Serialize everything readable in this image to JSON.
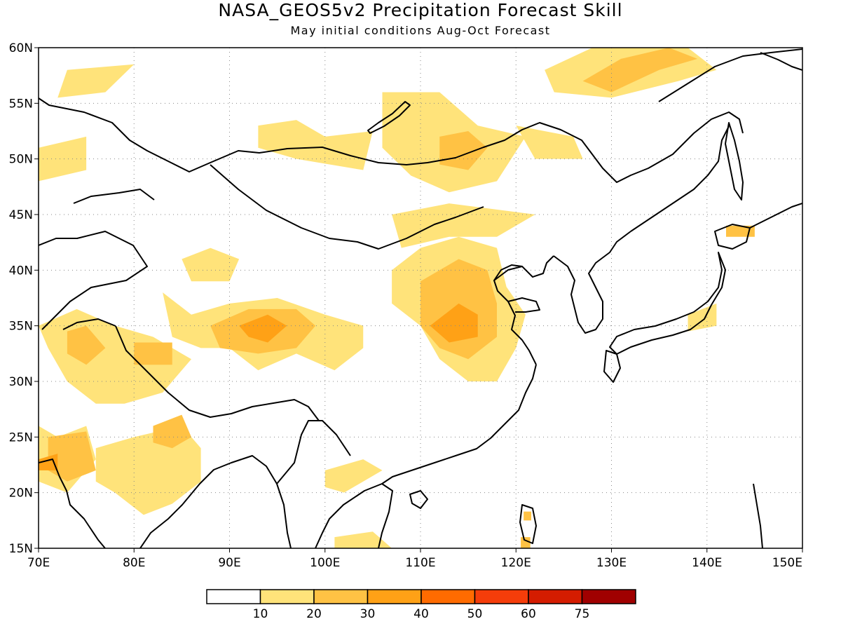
{
  "title": "NASA_GEOS5v2 Precipitation Forecast Skill",
  "subtitle": "May initial conditions  Aug-Oct Forecast",
  "axes": {
    "x_ticks": [
      "70E",
      "80E",
      "90E",
      "100E",
      "110E",
      "120E",
      "130E",
      "140E",
      "150E"
    ],
    "y_ticks": [
      "15N",
      "20N",
      "25N",
      "30N",
      "35N",
      "40N",
      "45N",
      "50N",
      "55N",
      "60N"
    ],
    "lon_range": [
      70,
      150
    ],
    "lat_range": [
      15,
      60
    ],
    "grid": true
  },
  "colorbar": {
    "labels": [
      "10",
      "20",
      "30",
      "40",
      "50",
      "60",
      "75"
    ],
    "colors": [
      "#ffffff",
      "#ffe37a",
      "#ffc244",
      "#ffa116",
      "#ff6b00",
      "#f53d0a",
      "#d41c00",
      "#a00000"
    ]
  },
  "chart_data": {
    "type": "heatmap",
    "title": "NASA_GEOS5v2 Precipitation Forecast Skill",
    "subtitle": "May initial conditions  Aug-Oct Forecast",
    "xlabel": "",
    "ylabel": "",
    "xlim": [
      70,
      150
    ],
    "ylim": [
      15,
      60
    ],
    "levels": [
      10,
      20,
      30,
      40,
      50,
      60,
      75
    ],
    "skill_regions": [
      {
        "name_hint": "",
        "level": 10,
        "lon": [
          [
            73,
            58
          ],
          [
            80,
            58.5
          ],
          [
            77,
            56
          ],
          [
            72,
            55.5
          ]
        ]
      },
      {
        "level": 10,
        "lon": [
          [
            70,
            51
          ],
          [
            75,
            52
          ],
          [
            75,
            49
          ],
          [
            70,
            48
          ]
        ]
      },
      {
        "level": 10,
        "lon": [
          [
            93,
            53
          ],
          [
            97,
            53.5
          ],
          [
            100,
            52
          ],
          [
            105,
            52.5
          ],
          [
            104,
            49
          ],
          [
            97,
            50
          ],
          [
            93,
            51
          ]
        ]
      },
      {
        "level": 10,
        "lon": [
          [
            106,
            56
          ],
          [
            112,
            56
          ],
          [
            116,
            53
          ],
          [
            121,
            52
          ],
          [
            118,
            48
          ],
          [
            113,
            47
          ],
          [
            109,
            48.5
          ],
          [
            106,
            51
          ]
        ]
      },
      {
        "level": 20,
        "lon": [
          [
            112,
            52
          ],
          [
            115,
            52.5
          ],
          [
            117,
            51
          ],
          [
            115,
            49
          ],
          [
            112,
            49.5
          ]
        ]
      },
      {
        "level": 10,
        "lon": [
          [
            120,
            53
          ],
          [
            126,
            52
          ],
          [
            127,
            50
          ],
          [
            122,
            50
          ]
        ]
      },
      {
        "level": 10,
        "lon": [
          [
            123,
            58
          ],
          [
            128,
            60
          ],
          [
            138,
            60
          ],
          [
            141,
            58
          ],
          [
            137,
            57
          ],
          [
            130,
            55.5
          ],
          [
            124,
            56
          ]
        ]
      },
      {
        "level": 20,
        "lon": [
          [
            127,
            57
          ],
          [
            131,
            59
          ],
          [
            136,
            60
          ],
          [
            139,
            59
          ],
          [
            135,
            58
          ],
          [
            130,
            56
          ]
        ]
      },
      {
        "level": 10,
        "lon": [
          [
            107,
            45
          ],
          [
            113,
            46
          ],
          [
            122,
            45
          ],
          [
            118,
            43
          ],
          [
            113,
            43
          ],
          [
            108,
            42
          ]
        ]
      },
      {
        "level": 10,
        "lon": [
          [
            107,
            40
          ],
          [
            110,
            42
          ],
          [
            114,
            43
          ],
          [
            118,
            42
          ],
          [
            119,
            38.5
          ],
          [
            121,
            36
          ],
          [
            120,
            33
          ],
          [
            118,
            30
          ],
          [
            115,
            30
          ],
          [
            112,
            32
          ],
          [
            110,
            35
          ],
          [
            107,
            37
          ]
        ]
      },
      {
        "level": 20,
        "lon": [
          [
            110,
            39
          ],
          [
            114,
            41
          ],
          [
            117,
            40
          ],
          [
            118,
            37
          ],
          [
            118,
            34
          ],
          [
            115,
            32
          ],
          [
            112,
            33
          ],
          [
            110,
            35
          ]
        ]
      },
      {
        "level": 30,
        "lon": [
          [
            111,
            35
          ],
          [
            114,
            37
          ],
          [
            116,
            36
          ],
          [
            116,
            34
          ],
          [
            113,
            33.5
          ]
        ]
      },
      {
        "level": 10,
        "lon": [
          [
            83,
            38
          ],
          [
            86,
            36
          ],
          [
            90,
            37
          ],
          [
            95,
            37.5
          ],
          [
            100,
            36
          ],
          [
            104,
            35
          ],
          [
            104,
            33
          ],
          [
            101,
            31
          ],
          [
            97,
            32.5
          ],
          [
            93,
            31
          ],
          [
            90,
            33
          ],
          [
            87,
            33
          ],
          [
            84,
            34
          ]
        ]
      },
      {
        "level": 20,
        "lon": [
          [
            88,
            35
          ],
          [
            92,
            36.5
          ],
          [
            97,
            36.5
          ],
          [
            99,
            35
          ],
          [
            97,
            33
          ],
          [
            93,
            32.5
          ],
          [
            89,
            33
          ]
        ]
      },
      {
        "level": 30,
        "lon": [
          [
            91,
            35
          ],
          [
            94,
            36
          ],
          [
            96,
            35
          ],
          [
            94,
            33.5
          ],
          [
            92,
            34
          ]
        ]
      },
      {
        "level": 10,
        "lon": [
          [
            85,
            41
          ],
          [
            88,
            42
          ],
          [
            91,
            41
          ],
          [
            90,
            39
          ],
          [
            86,
            39
          ]
        ]
      },
      {
        "level": 10,
        "lon": [
          [
            70,
            35
          ],
          [
            74,
            36.5
          ],
          [
            78,
            35
          ],
          [
            82,
            34
          ],
          [
            86,
            32
          ],
          [
            83,
            29
          ],
          [
            79,
            28
          ],
          [
            76,
            28
          ],
          [
            73,
            30
          ],
          [
            71,
            33
          ]
        ]
      },
      {
        "level": 20,
        "lon": [
          [
            73,
            34.5
          ],
          [
            75,
            35
          ],
          [
            77,
            33
          ],
          [
            75,
            31.5
          ],
          [
            73,
            32.5
          ]
        ]
      },
      {
        "level": 20,
        "lon": [
          [
            80,
            33.5
          ],
          [
            84,
            33.5
          ],
          [
            84,
            31.5
          ],
          [
            80,
            31.5
          ]
        ]
      },
      {
        "level": 10,
        "lon": [
          [
            70,
            26
          ],
          [
            72,
            25
          ],
          [
            75,
            26
          ],
          [
            76,
            23
          ],
          [
            73,
            20
          ],
          [
            70,
            21
          ]
        ]
      },
      {
        "level": 20,
        "lon": [
          [
            71,
            25
          ],
          [
            75,
            25.5
          ],
          [
            76,
            22
          ],
          [
            73,
            21
          ],
          [
            71,
            22
          ]
        ]
      },
      {
        "level": 30,
        "lon": [
          [
            70,
            23
          ],
          [
            72,
            23.5
          ],
          [
            72,
            22
          ],
          [
            70,
            22
          ]
        ]
      },
      {
        "level": 10,
        "lon": [
          [
            76,
            24
          ],
          [
            80,
            25
          ],
          [
            85,
            26
          ],
          [
            87,
            24
          ],
          [
            87,
            21
          ],
          [
            84,
            19
          ],
          [
            81,
            18
          ],
          [
            78,
            20
          ],
          [
            76,
            21
          ]
        ]
      },
      {
        "level": 20,
        "lon": [
          [
            82,
            26
          ],
          [
            85,
            27
          ],
          [
            86,
            25
          ],
          [
            84,
            24
          ],
          [
            82,
            24.5
          ]
        ]
      },
      {
        "level": 10,
        "lon": [
          [
            100,
            22
          ],
          [
            104,
            23
          ],
          [
            106,
            22
          ],
          [
            102,
            20
          ],
          [
            100,
            20.5
          ]
        ]
      },
      {
        "level": 10,
        "lon": [
          [
            101,
            16
          ],
          [
            105,
            16.5
          ],
          [
            107,
            15
          ],
          [
            101,
            15
          ]
        ]
      },
      {
        "level": 20,
        "lon": [
          [
            120.5,
            16
          ],
          [
            121.5,
            16
          ],
          [
            121.5,
            15
          ],
          [
            120.5,
            15
          ]
        ]
      },
      {
        "level": 20,
        "lon": [
          [
            120.8,
            18.3
          ],
          [
            121.6,
            18.3
          ],
          [
            121.6,
            17.5
          ],
          [
            120.8,
            17.5
          ]
        ]
      },
      {
        "level": 20,
        "lon": [
          [
            142,
            44
          ],
          [
            145,
            44
          ],
          [
            145,
            43
          ],
          [
            142,
            43
          ]
        ]
      },
      {
        "level": 10,
        "lon": [
          [
            138,
            36
          ],
          [
            141,
            37
          ],
          [
            141,
            35
          ],
          [
            138,
            34.5
          ]
        ]
      }
    ]
  }
}
